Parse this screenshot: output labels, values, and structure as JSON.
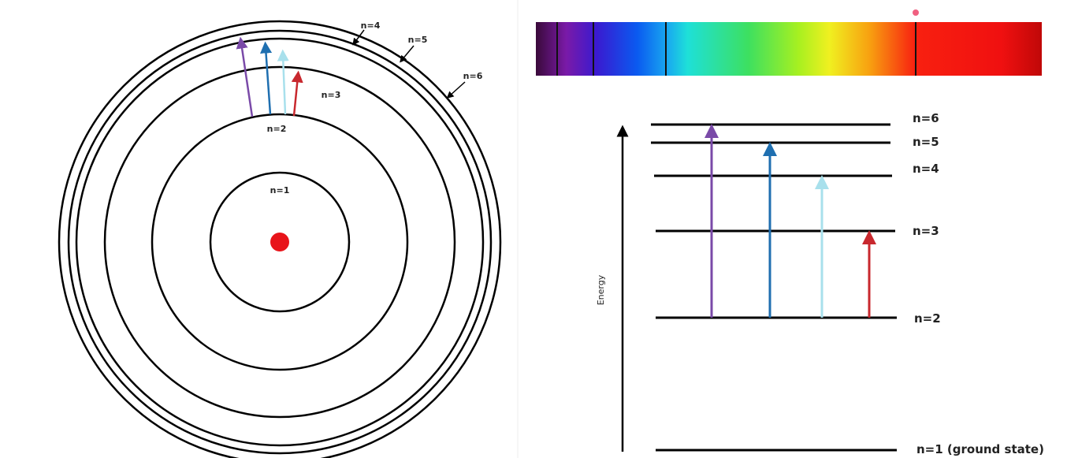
{
  "orbit_diagram": {
    "labels": [
      "n=1",
      "n=2",
      "n=3",
      "n=4",
      "n=5",
      "n=6"
    ]
  },
  "energy_diagram": {
    "axis_label": "Energy",
    "levels": [
      "n=6",
      "n=5",
      "n=4",
      "n=3",
      "n=2",
      "n=1 (ground state)"
    ]
  }
}
